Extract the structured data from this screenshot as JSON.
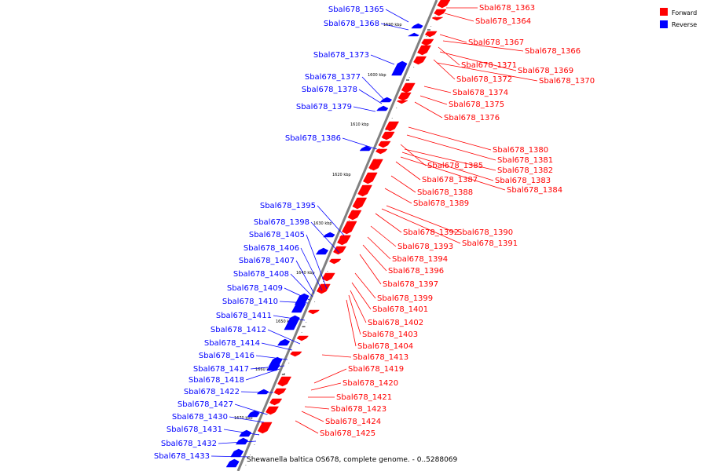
{
  "caption": "Shewanella baltica OS678, complete genome. - 0..5288069",
  "legend": [
    {
      "label": "Forward",
      "color": "#ff0000"
    },
    {
      "label": "Reverse",
      "color": "#0000ff"
    }
  ],
  "colors": {
    "forward": "#ff0000",
    "reverse": "#0000ff",
    "backbone": "#808080"
  },
  "ticks": [
    "1590 kbp",
    "1600 kbp",
    "1610 kbp",
    "1620 kbp",
    "1630 kbp",
    "1640 kbp",
    "1650 kbp",
    "1660 kbp",
    "1670 kbp"
  ],
  "forward_labels": [
    "Sbal678_1363",
    "Sbal678_1364",
    "Sbal678_1367",
    "Sbal678_1366",
    "Sbal678_1371",
    "Sbal678_1369",
    "Sbal678_1372",
    "Sbal678_1370",
    "Sbal678_1374",
    "Sbal678_1375",
    "Sbal678_1376",
    "Sbal678_1380",
    "Sbal678_1381",
    "Sbal678_1385",
    "Sbal678_1382",
    "Sbal678_1387",
    "Sbal678_1383",
    "Sbal678_1388",
    "Sbal678_1384",
    "Sbal678_1389",
    "Sbal678_1392",
    "Sbal678_1390",
    "Sbal678_1391",
    "Sbal678_1393",
    "Sbal678_1394",
    "Sbal678_1396",
    "Sbal678_1397",
    "Sbal678_1399",
    "Sbal678_1401",
    "Sbal678_1402",
    "Sbal678_1403",
    "Sbal678_1404",
    "Sbal678_1413",
    "Sbal678_1419",
    "Sbal678_1420",
    "Sbal678_1421",
    "Sbal678_1423",
    "Sbal678_1424",
    "Sbal678_1425"
  ],
  "reverse_labels": [
    "Sbal678_1365",
    "Sbal678_1368",
    "Sbal678_1373",
    "Sbal678_1377",
    "Sbal678_1378",
    "Sbal678_1379",
    "Sbal678_1386",
    "Sbal678_1395",
    "Sbal678_1398",
    "Sbal678_1405",
    "Sbal678_1406",
    "Sbal678_1407",
    "Sbal678_1408",
    "Sbal678_1409",
    "Sbal678_1410",
    "Sbal678_1411",
    "Sbal678_1412",
    "Sbal678_1414",
    "Sbal678_1416",
    "Sbal678_1417",
    "Sbal678_1418",
    "Sbal678_1422",
    "Sbal678_1427",
    "Sbal678_1430",
    "Sbal678_1431",
    "Sbal678_1432",
    "Sbal678_1433"
  ]
}
